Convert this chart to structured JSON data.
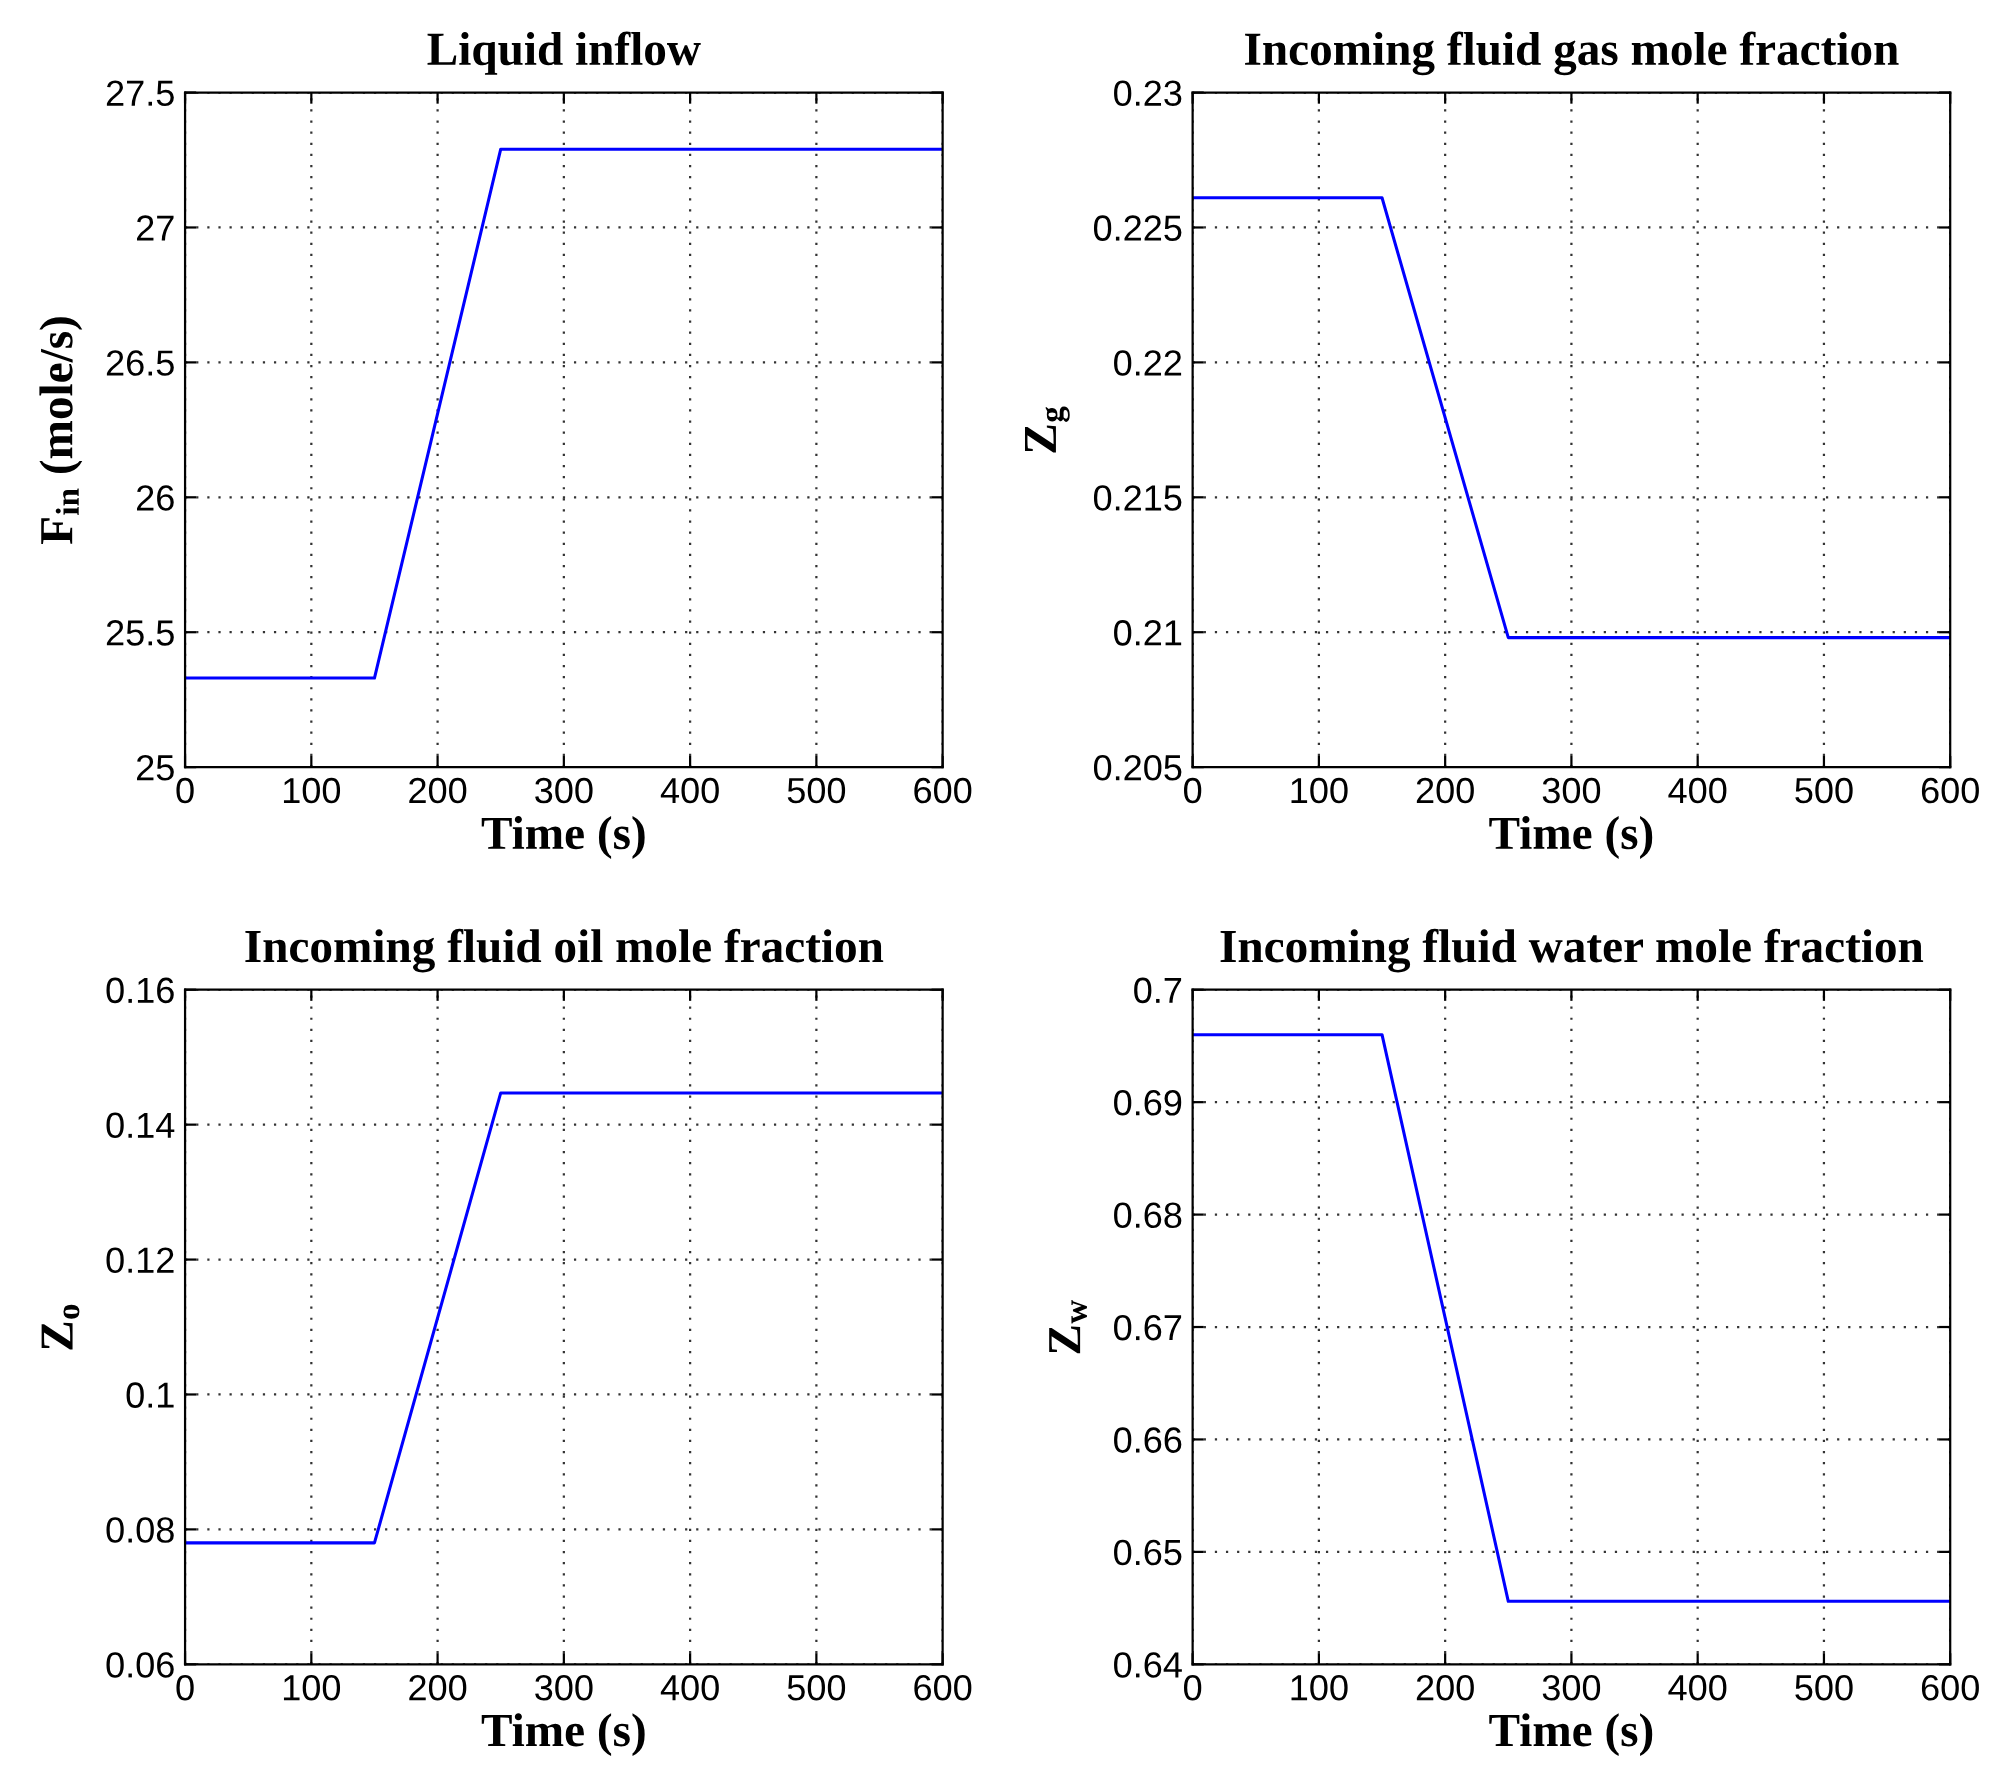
{
  "chart_data": [
    {
      "type": "line",
      "title": "Liquid inflow",
      "xlabel": "Time (s)",
      "ylabel": "F$_{in}$ (mole/s)",
      "x": [
        0,
        150,
        250,
        600
      ],
      "series": [
        {
          "color": "#0000ff",
          "values": [
            25.33,
            25.33,
            27.29,
            27.29
          ]
        }
      ],
      "xlim": [
        0,
        600
      ],
      "xticks": [
        0,
        100,
        200,
        300,
        400,
        500,
        600
      ],
      "ylim": [
        25,
        27.5
      ],
      "yticks": [
        25,
        25.5,
        26,
        26.5,
        27,
        27.5
      ],
      "grid": true,
      "line_style": "solid"
    },
    {
      "type": "line",
      "title": "Incoming fluid gas mole fraction",
      "xlabel": "Time (s)",
      "ylabel": "Z$_{g}$",
      "x": [
        0,
        150,
        250,
        600
      ],
      "series": [
        {
          "color": "#0000ff",
          "values": [
            0.2261,
            0.2261,
            0.2098,
            0.2098
          ]
        }
      ],
      "xlim": [
        0,
        600
      ],
      "xticks": [
        0,
        100,
        200,
        300,
        400,
        500,
        600
      ],
      "ylim": [
        0.205,
        0.23
      ],
      "yticks": [
        0.205,
        0.21,
        0.215,
        0.22,
        0.225,
        0.23
      ],
      "grid": true,
      "line_style": "solid"
    },
    {
      "type": "line",
      "title": "Incoming fluid oil mole fraction",
      "xlabel": "Time (s)",
      "ylabel": "Z$_{o}$",
      "x": [
        0,
        150,
        250,
        600
      ],
      "series": [
        {
          "color": "#0000ff",
          "values": [
            0.078,
            0.078,
            0.1447,
            0.1447
          ]
        }
      ],
      "xlim": [
        0,
        600
      ],
      "xticks": [
        0,
        100,
        200,
        300,
        400,
        500,
        600
      ],
      "ylim": [
        0.06,
        0.16
      ],
      "yticks": [
        0.06,
        0.08,
        0.1,
        0.12,
        0.14,
        0.16
      ],
      "grid": true,
      "line_style": "solid"
    },
    {
      "type": "line",
      "title": "Incoming fluid water mole fraction",
      "xlabel": "Time (s)",
      "ylabel": "Z$_{w}$",
      "x": [
        0,
        150,
        250,
        600
      ],
      "series": [
        {
          "color": "#0000ff",
          "values": [
            0.696,
            0.696,
            0.6456,
            0.6456
          ]
        }
      ],
      "xlim": [
        0,
        600
      ],
      "xticks": [
        0,
        100,
        200,
        300,
        400,
        500,
        600
      ],
      "ylim": [
        0.64,
        0.7
      ],
      "yticks": [
        0.64,
        0.65,
        0.66,
        0.67,
        0.68,
        0.69,
        0.7
      ],
      "grid": true,
      "line_style": "solid"
    }
  ]
}
